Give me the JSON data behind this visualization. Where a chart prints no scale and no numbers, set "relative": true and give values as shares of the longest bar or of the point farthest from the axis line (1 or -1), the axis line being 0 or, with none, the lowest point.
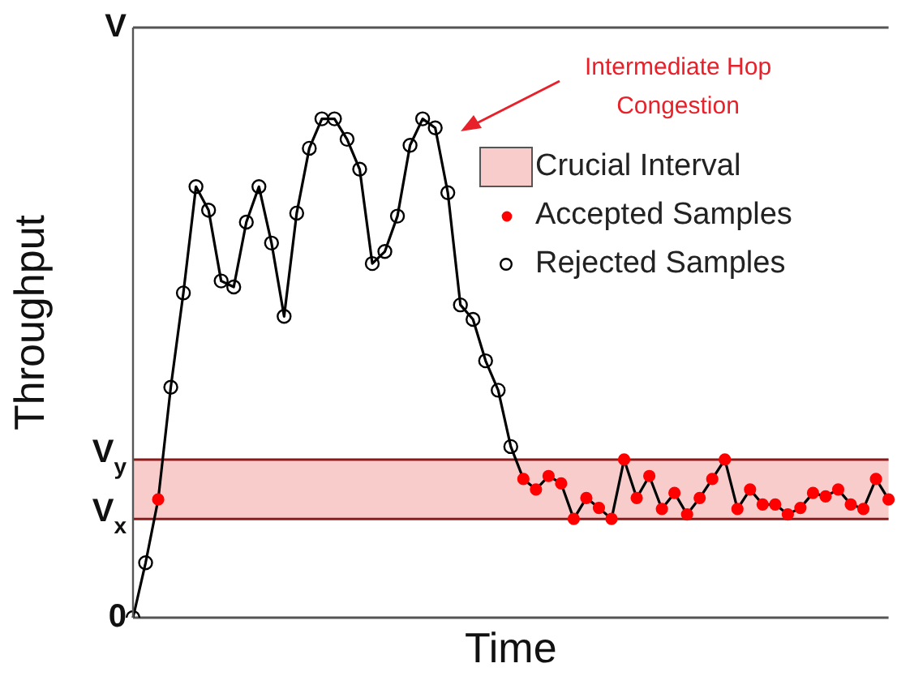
{
  "chart_data": {
    "type": "line",
    "xlabel": "Time",
    "ylabel": "Throughput",
    "categories": [
      null,
      null,
      null,
      null,
      null,
      null,
      null,
      null,
      null,
      null,
      null,
      null,
      null,
      null,
      null,
      null,
      null,
      null,
      null,
      null,
      null,
      null,
      null,
      null,
      null,
      null,
      null,
      null,
      null,
      null,
      null,
      null,
      null,
      null,
      null,
      null,
      null,
      null,
      null,
      null,
      null,
      null,
      null,
      null,
      null,
      null,
      null,
      null,
      null,
      null,
      null,
      null,
      null,
      null,
      null,
      null,
      null,
      null,
      null,
      null,
      null
    ],
    "relative": true,
    "ref_lines": [
      {
        "axis": "y",
        "value": 0,
        "label": "0",
        "color": "#555555"
      },
      {
        "axis": "y",
        "value": 0.198,
        "label": "V$_{x}$",
        "color": "#8b1a1a"
      },
      {
        "axis": "y",
        "value": 0.317,
        "label": "V$_{y}$",
        "color": "#8b1a1a"
      },
      {
        "axis": "y",
        "value": 1.183,
        "label": "V",
        "color": "#555555"
      }
    ],
    "grid": false,
    "legend": "top right",
    "line_style": "solid",
    "bands": [
      {
        "axis": "y",
        "from": 0.198,
        "to": 0.317,
        "label": "Crucial Interval",
        "color": "#f9cccc"
      }
    ],
    "annotations": [
      "Intermediate Hop Congestion",
      "Accepted Samples",
      "Rejected Samples"
    ],
    "series": [
      {
        "marker": "circle",
        "color": "#000000",
        "colors": [
          "#000000",
          "#000000",
          "#ff0000",
          "#000000",
          "#000000",
          "#000000",
          "#000000",
          "#000000",
          "#000000",
          "#000000",
          "#000000",
          "#000000",
          "#000000",
          "#000000",
          "#000000",
          "#000000",
          "#000000",
          "#000000",
          "#000000",
          "#000000",
          "#000000",
          "#000000",
          "#000000",
          "#000000",
          "#000000",
          "#000000",
          "#000000",
          "#000000",
          "#000000",
          "#000000",
          "#000000",
          "#ff0000",
          "#ff0000",
          "#ff0000",
          "#ff0000",
          "#ff0000",
          "#ff0000",
          "#ff0000",
          "#ff0000",
          "#ff0000",
          "#ff0000",
          "#ff0000",
          "#ff0000",
          "#ff0000",
          "#ff0000",
          "#ff0000",
          "#ff0000",
          "#ff0000",
          "#ff0000",
          "#ff0000",
          "#ff0000",
          "#ff0000",
          "#ff0000",
          "#ff0000",
          "#ff0000",
          "#ff0000",
          "#ff0000",
          "#ff0000",
          "#ff0000",
          "#ff0000",
          "#ff0000"
        ],
        "values": [
          0,
          0.11,
          0.237,
          0.462,
          0.651,
          0.864,
          0.817,
          0.675,
          0.663,
          0.793,
          0.864,
          0.751,
          0.604,
          0.811,
          0.941,
          1,
          1,
          0.959,
          0.899,
          0.71,
          0.734,
          0.805,
          0.947,
          1,
          0.982,
          0.852,
          0.627,
          0.598,
          0.515,
          0.456,
          0.343,
          0.278,
          0.257,
          0.284,
          0.269,
          0.198,
          0.24,
          0.22,
          0.198,
          0.317,
          0.24,
          0.284,
          0.218,
          0.25,
          0.207,
          0.24,
          0.278,
          0.317,
          0.218,
          0.257,
          0.227,
          0.227,
          0.207,
          0.22,
          0.25,
          0.243,
          0.257,
          0.227,
          0.218,
          0.278,
          0.237
        ]
      }
    ]
  }
}
